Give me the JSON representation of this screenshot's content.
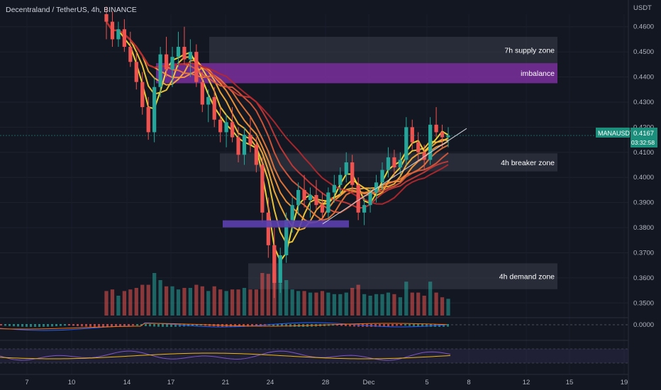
{
  "header": {
    "title": "Decentraland / TetherUS, 4h, BINANCE",
    "currency": "USDT"
  },
  "price_badge": {
    "symbol": "MANAUSDT",
    "price": "0.4167",
    "countdown": "03:32:58"
  },
  "colors": {
    "background": "#131722",
    "up_candle": "#26a69a",
    "down_candle": "#ef5350",
    "zone_gray": "#3a3e4a",
    "imbalance": "#7b2f9e",
    "support_bar": "#5b3fb0",
    "ribbon": [
      "#ffe93a",
      "#ffd43a",
      "#ffb53a",
      "#ff9a3a",
      "#f07a3a",
      "#e05a3a",
      "#cc3a36",
      "#b8282e"
    ],
    "badge": "#1c8e7c"
  },
  "chart_data": {
    "type": "candlestick",
    "title": "Decentraland / TetherUS, 4h, BINANCE",
    "ylabel": "USDT",
    "ylim": [
      0.345,
      0.465
    ],
    "y_ticks": [
      "0.4600",
      "0.4500",
      "0.4400",
      "0.4300",
      "0.4200",
      "0.4100",
      "0.4000",
      "0.3900",
      "0.3800",
      "0.3700",
      "0.3600",
      "0.3500"
    ],
    "x_ticks": [
      "7",
      "10",
      "14",
      "17",
      "21",
      "24",
      "28",
      "Dec",
      "5",
      "8",
      "12",
      "15",
      "19"
    ],
    "last_price": 0.4167,
    "zones": [
      {
        "label": "7h supply zone",
        "low": 0.4455,
        "high": 0.456
      },
      {
        "label": "imbalance",
        "low": 0.4375,
        "high": 0.4455
      },
      {
        "label": "4h breaker zone",
        "low": 0.4024,
        "high": 0.4096
      },
      {
        "label": "4h demand zone",
        "low": 0.3555,
        "high": 0.3658
      }
    ],
    "support_bar_level": 0.3815,
    "oscillator_zero_label": "0.0000",
    "trendline": {
      "from": 0.3815,
      "to": 0.4195
    },
    "candles": [
      [
        0.465,
        0.468,
        0.455,
        0.462
      ],
      [
        0.462,
        0.466,
        0.452,
        0.455
      ],
      [
        0.455,
        0.462,
        0.452,
        0.459
      ],
      [
        0.459,
        0.463,
        0.45,
        0.452
      ],
      [
        0.452,
        0.458,
        0.444,
        0.446
      ],
      [
        0.446,
        0.45,
        0.435,
        0.438
      ],
      [
        0.438,
        0.442,
        0.425,
        0.428
      ],
      [
        0.428,
        0.432,
        0.415,
        0.418
      ],
      [
        0.418,
        0.44,
        0.414,
        0.436
      ],
      [
        0.436,
        0.452,
        0.432,
        0.449
      ],
      [
        0.449,
        0.456,
        0.44,
        0.443
      ],
      [
        0.443,
        0.452,
        0.436,
        0.448
      ],
      [
        0.448,
        0.458,
        0.444,
        0.452
      ],
      [
        0.452,
        0.46,
        0.445,
        0.447
      ],
      [
        0.447,
        0.455,
        0.44,
        0.45
      ],
      [
        0.45,
        0.453,
        0.436,
        0.438
      ],
      [
        0.438,
        0.442,
        0.426,
        0.429
      ],
      [
        0.429,
        0.435,
        0.422,
        0.432
      ],
      [
        0.432,
        0.436,
        0.42,
        0.423
      ],
      [
        0.423,
        0.428,
        0.414,
        0.418
      ],
      [
        0.418,
        0.425,
        0.412,
        0.422
      ],
      [
        0.422,
        0.428,
        0.414,
        0.416
      ],
      [
        0.416,
        0.42,
        0.406,
        0.409
      ],
      [
        0.409,
        0.42,
        0.405,
        0.417
      ],
      [
        0.417,
        0.424,
        0.41,
        0.413
      ],
      [
        0.413,
        0.416,
        0.402,
        0.405
      ],
      [
        0.405,
        0.408,
        0.382,
        0.386
      ],
      [
        0.386,
        0.392,
        0.368,
        0.373
      ],
      [
        0.373,
        0.38,
        0.352,
        0.358
      ],
      [
        0.358,
        0.372,
        0.354,
        0.369
      ],
      [
        0.369,
        0.386,
        0.366,
        0.383
      ],
      [
        0.383,
        0.392,
        0.378,
        0.389
      ],
      [
        0.389,
        0.398,
        0.385,
        0.395
      ],
      [
        0.395,
        0.401,
        0.388,
        0.391
      ],
      [
        0.391,
        0.396,
        0.384,
        0.393
      ],
      [
        0.393,
        0.399,
        0.387,
        0.389
      ],
      [
        0.389,
        0.394,
        0.381,
        0.386
      ],
      [
        0.386,
        0.396,
        0.384,
        0.394
      ],
      [
        0.394,
        0.401,
        0.39,
        0.397
      ],
      [
        0.397,
        0.404,
        0.393,
        0.401
      ],
      [
        0.401,
        0.41,
        0.398,
        0.406
      ],
      [
        0.406,
        0.409,
        0.394,
        0.397
      ],
      [
        0.397,
        0.4,
        0.383,
        0.386
      ],
      [
        0.386,
        0.392,
        0.381,
        0.389
      ],
      [
        0.389,
        0.396,
        0.386,
        0.394
      ],
      [
        0.394,
        0.401,
        0.39,
        0.398
      ],
      [
        0.398,
        0.406,
        0.395,
        0.403
      ],
      [
        0.403,
        0.412,
        0.4,
        0.408
      ],
      [
        0.408,
        0.411,
        0.4,
        0.404
      ],
      [
        0.404,
        0.41,
        0.401,
        0.407
      ],
      [
        0.407,
        0.424,
        0.405,
        0.42
      ],
      [
        0.42,
        0.423,
        0.411,
        0.414
      ],
      [
        0.414,
        0.418,
        0.406,
        0.41
      ],
      [
        0.41,
        0.413,
        0.403,
        0.407
      ],
      [
        0.407,
        0.424,
        0.405,
        0.421
      ],
      [
        0.421,
        0.428,
        0.416,
        0.418
      ],
      [
        0.418,
        0.421,
        0.412,
        0.416
      ],
      [
        0.416,
        0.42,
        0.412,
        0.4167
      ]
    ]
  }
}
